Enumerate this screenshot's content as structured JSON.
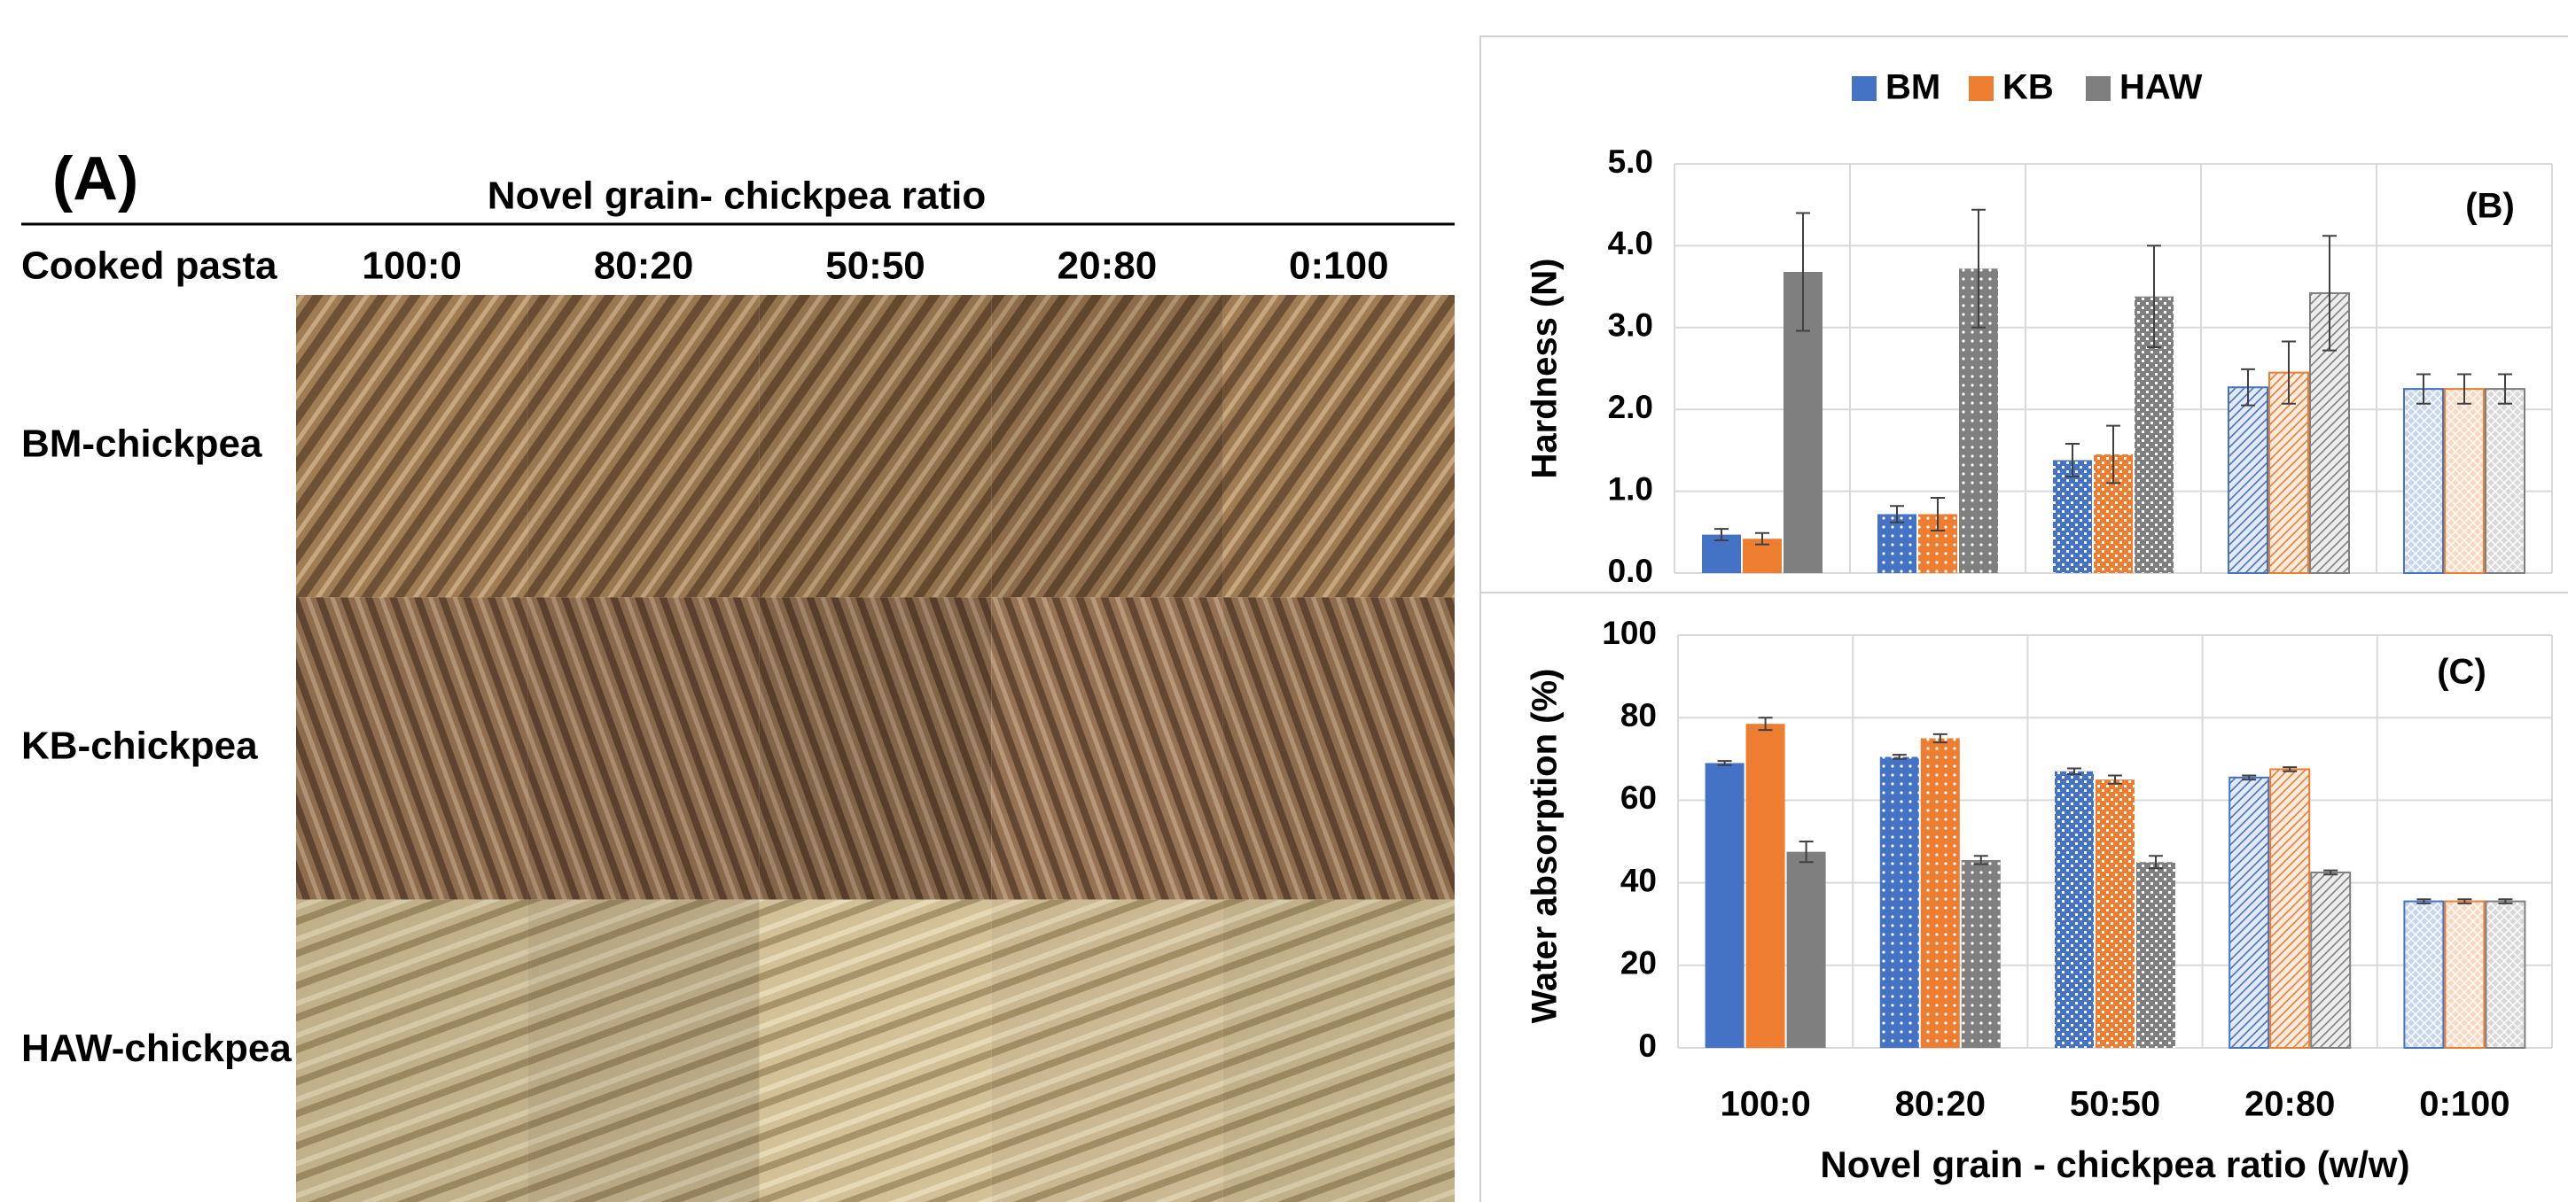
{
  "panel_a": {
    "label": "(A)",
    "title": "Novel grain- chickpea ratio",
    "corner": "Cooked pasta",
    "columns": [
      "100:0",
      "80:20",
      "50:50",
      "20:80",
      "0:100"
    ],
    "rows": [
      "BM-chickpea",
      "KB-chickpea",
      "HAW-chickpea"
    ]
  },
  "chart_data": [
    {
      "type": "bar",
      "y_label": "Hardness (N)",
      "annotation": "(B)",
      "legend": "top",
      "grid": true,
      "ylim": [
        0,
        5
      ],
      "yticks": [
        {
          "value": 0,
          "label": "0.0"
        },
        {
          "value": 1,
          "label": "1.0"
        },
        {
          "value": 2,
          "label": "2.0"
        },
        {
          "value": 3,
          "label": "3.0"
        },
        {
          "value": 4,
          "label": "4.0"
        },
        {
          "value": 5,
          "label": "5.0"
        }
      ],
      "series": [
        {
          "name": "BM",
          "color": "#4472c4",
          "values": [
            0.47,
            0.72,
            1.38,
            2.27,
            2.25
          ],
          "errors": [
            0.07,
            0.1,
            0.2,
            0.22,
            0.18
          ]
        },
        {
          "name": "KB",
          "color": "#ed7d31",
          "values": [
            0.42,
            0.72,
            1.45,
            2.45,
            2.25
          ],
          "errors": [
            0.07,
            0.2,
            0.35,
            0.38,
            0.18
          ]
        },
        {
          "name": "HAW",
          "color": "#7f7f7f",
          "values": [
            3.68,
            3.72,
            3.38,
            3.42,
            2.25
          ],
          "errors": [
            0.72,
            0.72,
            0.62,
            0.7,
            0.18
          ]
        }
      ]
    },
    {
      "type": "bar",
      "y_label": "Water absorption (%)",
      "annotation": "(C)",
      "grid": true,
      "x_label": "Novel grain - chickpea ratio (w/w)",
      "categories": [
        "100:0",
        "80:20",
        "50:50",
        "20:80",
        "0:100"
      ],
      "ylim": [
        0,
        100
      ],
      "yticks": [
        0,
        20,
        40,
        60,
        80,
        100
      ],
      "series": [
        {
          "color": "#4472c4",
          "values": [
            69,
            70.5,
            67,
            65.5,
            35.5
          ],
          "errors": [
            0.5,
            0.5,
            0.7,
            0.5,
            0.5
          ]
        },
        {
          "color": "#ed7d31",
          "values": [
            78.5,
            75,
            65,
            67.5,
            35.5
          ],
          "errors": [
            1.5,
            1,
            1,
            0.5,
            0.5
          ]
        },
        {
          "color": "#7f7f7f",
          "values": [
            47.5,
            45.5,
            45,
            42.5,
            35.5
          ],
          "errors": [
            2.5,
            1,
            1.5,
            0.5,
            0.5
          ]
        }
      ]
    }
  ]
}
